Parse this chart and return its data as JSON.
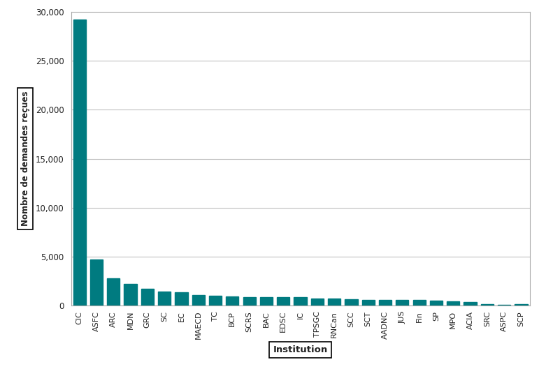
{
  "categories": [
    "CIC",
    "ASFC",
    "ARC",
    "MDN",
    "GRC",
    "SC",
    "EC",
    "MAECD",
    "TC",
    "BCP",
    "SCRS",
    "BAC",
    "EDSC",
    "IC",
    "TPSGC",
    "RNCan",
    "SCC",
    "SCT",
    "AADNC",
    "JUS",
    "Fin",
    "SP",
    "MPO",
    "ACIA",
    "SRC",
    "ASPC",
    "SCP"
  ],
  "values": [
    29200,
    4700,
    2800,
    2200,
    1700,
    1450,
    1350,
    1100,
    1050,
    950,
    900,
    850,
    900,
    850,
    750,
    750,
    650,
    600,
    600,
    600,
    575,
    500,
    450,
    350,
    150,
    125,
    175
  ],
  "bar_color": "#007B80",
  "xlabel": "Institution",
  "ylabel": "Nombre de demandes reçues",
  "ylim": [
    0,
    30000
  ],
  "yticks": [
    0,
    5000,
    10000,
    15000,
    20000,
    25000,
    30000
  ],
  "background_color": "#ffffff",
  "grid_color": "#c0c0c0",
  "bar_width": 0.75,
  "spine_color": "#aaaaaa"
}
